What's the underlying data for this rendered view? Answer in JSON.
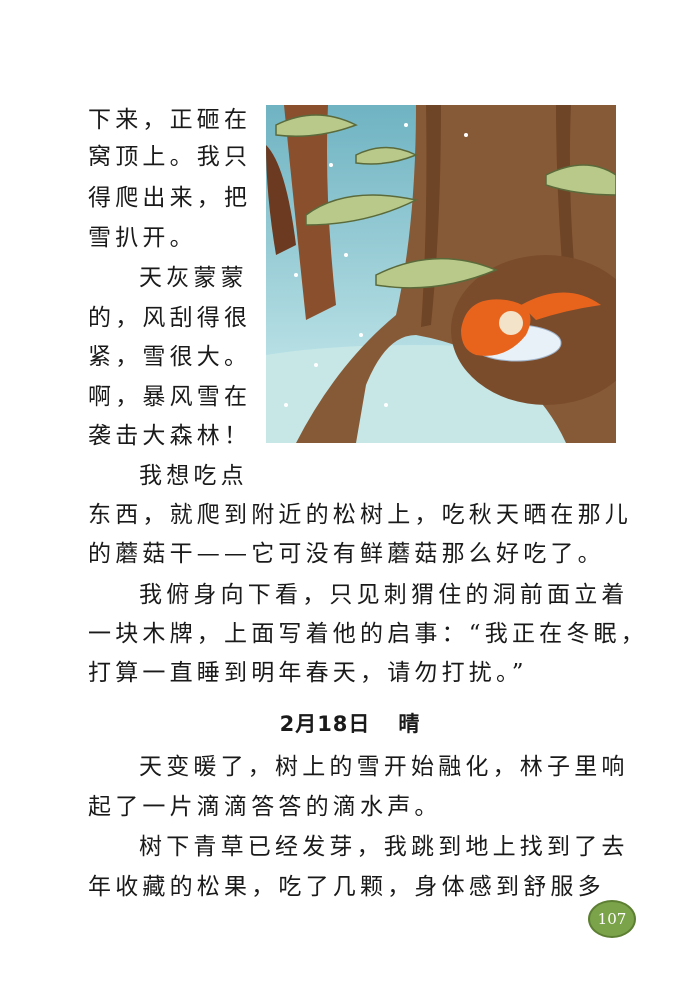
{
  "left_column": [
    "下来，正砸在",
    "窝顶上。我只",
    "得爬出来，把",
    "雪扒开。",
    "天灰蒙蒙",
    "的，风刮得很",
    "紧，雪很大。",
    "啊，暴风雪在",
    "袭击大森林！",
    "我想吃点"
  ],
  "body_lines": [
    "东西，就爬到附近的松树上，吃秋天晒在那儿",
    "的蘑菇干——它可没有鲜蘑菇那么好吃了。",
    "我俯身向下看，只见刺猬住的洞前面立着",
    "一块木牌，上面写着他的启事：“我正在冬眠，",
    "打算一直睡到明年春天，请勿打扰。”"
  ],
  "heading": {
    "date": "2月18日",
    "weather": "晴"
  },
  "after_heading": [
    "天变暖了，树上的雪开始融化，林子里响",
    "起了一片滴滴答答的滴水声。",
    "树下青草已经发芽，我跳到地上找到了去",
    "年收藏的松果，吃了几颗，身体感到舒服多"
  ],
  "page_number": "107",
  "colors": {
    "sky": "#9fd3da",
    "trunk": "#7a4a2a",
    "pine": "#b9c98a",
    "squirrel": "#e8641c",
    "badge": "#7aa34a"
  }
}
